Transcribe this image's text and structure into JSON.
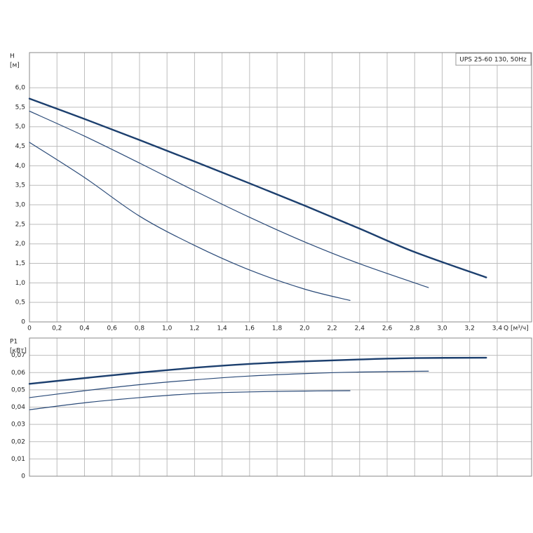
{
  "chart_data": [
    {
      "type": "line",
      "title": "UPS 25-60 130, 50Hz",
      "ylabel": "H",
      "yunit": "[м]",
      "xlabel": "Q [м³/ч]",
      "xlim": [
        0,
        3.65
      ],
      "ylim": [
        0,
        6.9
      ],
      "xticks": [
        0,
        {
          "value": 0.2,
          "label": "0,2"
        },
        {
          "value": 0.4,
          "label": "0,4"
        },
        {
          "value": 0.6,
          "label": "0,6"
        },
        {
          "value": 0.8,
          "label": "0,8"
        },
        {
          "value": 1.0,
          "label": "1,0"
        },
        {
          "value": 1.2,
          "label": "1,2"
        },
        {
          "value": 1.4,
          "label": "1,4"
        },
        {
          "value": 1.6,
          "label": "1,6"
        },
        {
          "value": 1.8,
          "label": "1,8"
        },
        {
          "value": 2.0,
          "label": "2,0"
        },
        {
          "value": 2.2,
          "label": "2,2"
        },
        {
          "value": 2.4,
          "label": "2,4"
        },
        {
          "value": 2.6,
          "label": "2,6"
        },
        {
          "value": 2.8,
          "label": "2,8"
        },
        {
          "value": 3.0,
          "label": "3,0"
        },
        {
          "value": 3.2,
          "label": "3,2"
        },
        {
          "value": 3.4,
          "label": "3,4"
        }
      ],
      "yticks": [
        0,
        {
          "value": 0.5,
          "label": "0,5"
        },
        {
          "value": 1.0,
          "label": "1,0"
        },
        {
          "value": 1.5,
          "label": "1,5"
        },
        {
          "value": 2.0,
          "label": "2,0"
        },
        {
          "value": 2.5,
          "label": "2,5"
        },
        {
          "value": 3.0,
          "label": "3,0"
        },
        {
          "value": 3.5,
          "label": "3,5"
        },
        {
          "value": 4.0,
          "label": "4,0"
        },
        {
          "value": 4.5,
          "label": "4,5"
        },
        {
          "value": 5.0,
          "label": "5,0"
        },
        {
          "value": 5.5,
          "label": "5,5"
        },
        {
          "value": 6.0,
          "label": "6,0"
        }
      ],
      "xticklabels": true,
      "grid": true,
      "series": [
        {
          "color": "#1c3f6e",
          "width": 2.4,
          "x": [
            0,
            0.4,
            0.8,
            1.2,
            1.6,
            2.0,
            2.4,
            2.8,
            3.32
          ],
          "values": [
            5.72,
            5.2,
            4.66,
            4.11,
            3.55,
            2.98,
            2.39,
            1.79,
            1.14
          ]
        },
        {
          "color": "#2a4a78",
          "width": 1.2,
          "x": [
            0,
            0.4,
            0.8,
            1.2,
            1.6,
            2.0,
            2.4,
            2.9
          ],
          "values": [
            5.4,
            4.76,
            4.07,
            3.36,
            2.68,
            2.05,
            1.49,
            0.88
          ]
        },
        {
          "color": "#2a4a78",
          "width": 1.2,
          "x": [
            0,
            0.4,
            0.8,
            1.2,
            1.6,
            2.0,
            2.33
          ],
          "values": [
            4.6,
            3.7,
            2.71,
            1.96,
            1.33,
            0.84,
            0.55
          ]
        }
      ]
    },
    {
      "type": "line",
      "ylabel": "P1",
      "yunit": "[кВт]",
      "xlim": [
        0,
        3.65
      ],
      "ylim": [
        0,
        0.08
      ],
      "xticks": [
        0,
        0.2,
        0.4,
        0.6,
        0.8,
        1.0,
        1.2,
        1.4,
        1.6,
        1.8,
        2.0,
        2.2,
        2.4,
        2.6,
        2.8,
        3.0,
        3.2,
        3.4
      ],
      "yticks": [
        0,
        {
          "value": 0.01,
          "label": "0,01"
        },
        {
          "value": 0.02,
          "label": "0,02"
        },
        {
          "value": 0.03,
          "label": "0,03"
        },
        {
          "value": 0.04,
          "label": "0,04"
        },
        {
          "value": 0.05,
          "label": "0,05"
        },
        {
          "value": 0.06,
          "label": "0,06"
        },
        {
          "value": 0.07,
          "label": "0,07"
        }
      ],
      "xticklabels": false,
      "grid": true,
      "series": [
        {
          "color": "#1c3f6e",
          "width": 2.4,
          "x": [
            0,
            0.4,
            0.8,
            1.2,
            1.6,
            2.0,
            2.4,
            2.8,
            3.32
          ],
          "values": [
            0.0535,
            0.0568,
            0.06,
            0.0628,
            0.065,
            0.0665,
            0.0676,
            0.0684,
            0.0686
          ]
        },
        {
          "color": "#2a4a78",
          "width": 1.2,
          "x": [
            0,
            0.4,
            0.8,
            1.2,
            1.6,
            2.0,
            2.4,
            2.9
          ],
          "values": [
            0.0455,
            0.0495,
            0.053,
            0.0558,
            0.058,
            0.0594,
            0.0603,
            0.0608
          ]
        },
        {
          "color": "#2a4a78",
          "width": 1.2,
          "x": [
            0,
            0.4,
            0.8,
            1.2,
            1.6,
            2.0,
            2.33
          ],
          "values": [
            0.0385,
            0.0425,
            0.0455,
            0.0478,
            0.0488,
            0.0493,
            0.0495
          ]
        }
      ]
    }
  ]
}
